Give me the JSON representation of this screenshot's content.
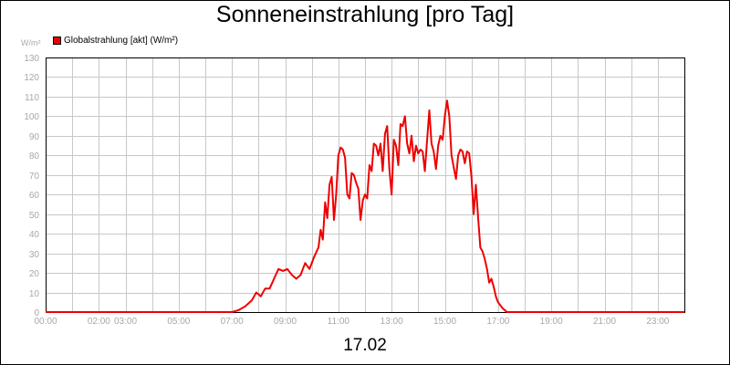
{
  "chart_data": {
    "type": "line",
    "title": "Sonneneinstrahlung [pro Tag]",
    "ylabel": "W/m²",
    "xlabel": "17.02",
    "legend": "top-left",
    "grid": true,
    "ylim": [
      0,
      130
    ],
    "xlim": [
      "00:00",
      "24:00"
    ],
    "y_ticks": [
      0,
      10,
      20,
      30,
      40,
      50,
      60,
      70,
      80,
      90,
      100,
      110,
      120,
      130
    ],
    "x_ticks": [
      "00:00",
      "02:00",
      "03:00",
      "05:00",
      "07:00",
      "09:00",
      "11:00",
      "13:00",
      "15:00",
      "17:00",
      "19:00",
      "21:00",
      "23:00"
    ],
    "colors": {
      "series": "#ee0000",
      "grid": "#c8c8c8",
      "axis_text": "#a8a8a8"
    },
    "series": [
      {
        "name": "Globalstrahlung [akt] (W/m²)",
        "color": "#ee0000",
        "points": [
          [
            "00:00",
            0
          ],
          [
            "07:00",
            0
          ],
          [
            "07:15",
            1
          ],
          [
            "07:30",
            3
          ],
          [
            "07:45",
            6
          ],
          [
            "07:55",
            10
          ],
          [
            "08:05",
            8
          ],
          [
            "08:15",
            12
          ],
          [
            "08:25",
            12
          ],
          [
            "08:35",
            17
          ],
          [
            "08:45",
            22
          ],
          [
            "08:55",
            21
          ],
          [
            "09:05",
            22
          ],
          [
            "09:15",
            19
          ],
          [
            "09:25",
            17
          ],
          [
            "09:35",
            19
          ],
          [
            "09:45",
            25
          ],
          [
            "09:55",
            22
          ],
          [
            "10:05",
            28
          ],
          [
            "10:15",
            33
          ],
          [
            "10:20",
            42
          ],
          [
            "10:25",
            37
          ],
          [
            "10:30",
            56
          ],
          [
            "10:35",
            48
          ],
          [
            "10:40",
            65
          ],
          [
            "10:45",
            69
          ],
          [
            "10:50",
            47
          ],
          [
            "10:55",
            60
          ],
          [
            "11:00",
            80
          ],
          [
            "11:05",
            84
          ],
          [
            "11:10",
            83
          ],
          [
            "11:15",
            79
          ],
          [
            "11:20",
            60
          ],
          [
            "11:25",
            58
          ],
          [
            "11:30",
            71
          ],
          [
            "11:35",
            70
          ],
          [
            "11:40",
            66
          ],
          [
            "11:45",
            63
          ],
          [
            "11:50",
            47
          ],
          [
            "11:55",
            57
          ],
          [
            "12:00",
            60
          ],
          [
            "12:05",
            58
          ],
          [
            "12:10",
            75
          ],
          [
            "12:15",
            72
          ],
          [
            "12:20",
            86
          ],
          [
            "12:25",
            85
          ],
          [
            "12:30",
            80
          ],
          [
            "12:35",
            86
          ],
          [
            "12:40",
            72
          ],
          [
            "12:45",
            91
          ],
          [
            "12:50",
            95
          ],
          [
            "12:55",
            73
          ],
          [
            "13:00",
            60
          ],
          [
            "13:05",
            88
          ],
          [
            "13:10",
            85
          ],
          [
            "13:15",
            75
          ],
          [
            "13:20",
            96
          ],
          [
            "13:25",
            95
          ],
          [
            "13:30",
            100
          ],
          [
            "13:35",
            86
          ],
          [
            "13:40",
            81
          ],
          [
            "13:45",
            90
          ],
          [
            "13:50",
            77
          ],
          [
            "13:55",
            85
          ],
          [
            "14:00",
            81
          ],
          [
            "14:05",
            83
          ],
          [
            "14:10",
            82
          ],
          [
            "14:15",
            72
          ],
          [
            "14:20",
            88
          ],
          [
            "14:25",
            103
          ],
          [
            "14:30",
            86
          ],
          [
            "14:35",
            82
          ],
          [
            "14:40",
            73
          ],
          [
            "14:45",
            85
          ],
          [
            "14:50",
            90
          ],
          [
            "14:55",
            88
          ],
          [
            "15:00",
            100
          ],
          [
            "15:05",
            108
          ],
          [
            "15:10",
            100
          ],
          [
            "15:15",
            80
          ],
          [
            "15:20",
            74
          ],
          [
            "15:25",
            68
          ],
          [
            "15:30",
            80
          ],
          [
            "15:35",
            83
          ],
          [
            "15:40",
            82
          ],
          [
            "15:45",
            76
          ],
          [
            "15:50",
            82
          ],
          [
            "15:55",
            81
          ],
          [
            "16:00",
            69
          ],
          [
            "16:05",
            50
          ],
          [
            "16:10",
            65
          ],
          [
            "16:15",
            48
          ],
          [
            "16:20",
            33
          ],
          [
            "16:25",
            31
          ],
          [
            "16:30",
            27
          ],
          [
            "16:35",
            22
          ],
          [
            "16:40",
            15
          ],
          [
            "16:45",
            17
          ],
          [
            "16:50",
            13
          ],
          [
            "16:55",
            8
          ],
          [
            "17:00",
            5
          ],
          [
            "17:10",
            2
          ],
          [
            "17:20",
            0
          ],
          [
            "24:00",
            0
          ]
        ]
      }
    ]
  }
}
